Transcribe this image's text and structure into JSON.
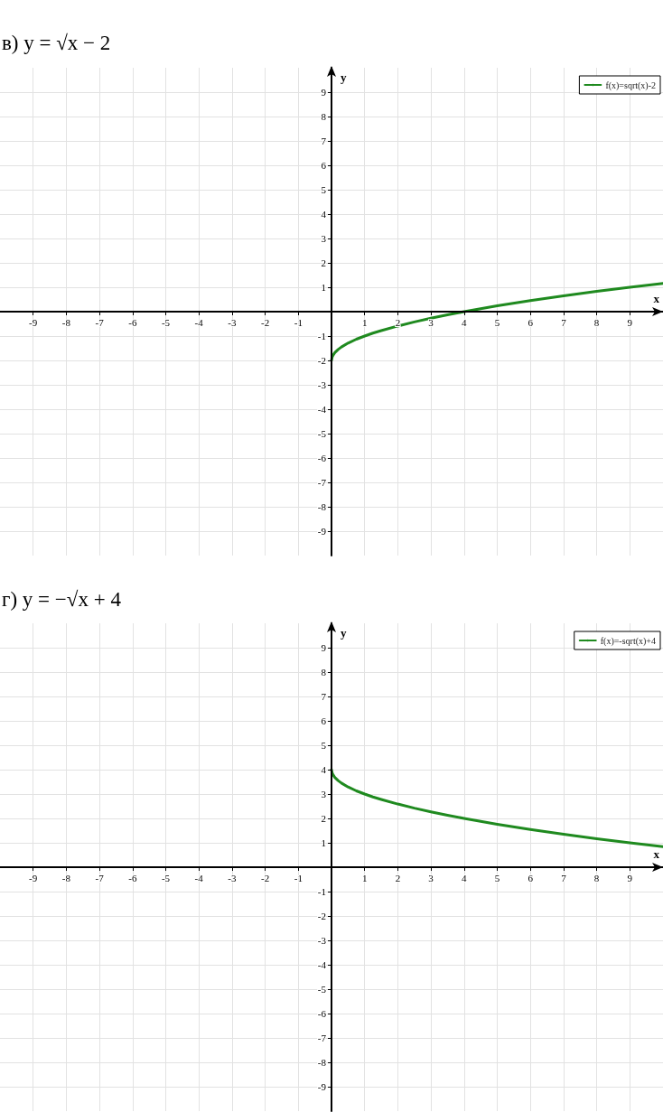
{
  "chart_data": [
    {
      "type": "line",
      "title": "в) y = √x − 2",
      "xlabel": "x",
      "ylabel": "y",
      "x": [
        0,
        0.02,
        0.05,
        0.1,
        0.2,
        0.3,
        0.5,
        0.75,
        1,
        1.25,
        1.5,
        2,
        2.5,
        3,
        3.5,
        4,
        5,
        6,
        7,
        8,
        9,
        10
      ],
      "series": [
        {
          "name": "f(x)=sqrt(x)-2",
          "color": "#1f8a1f",
          "values": [
            -2,
            -1.86,
            -1.78,
            -1.68,
            -1.55,
            -1.45,
            -1.29,
            -1.13,
            -1,
            -0.88,
            -0.78,
            -0.59,
            -0.42,
            -0.27,
            -0.13,
            0,
            0.24,
            0.45,
            0.65,
            0.83,
            1,
            1.16
          ]
        }
      ],
      "xlim": [
        -10,
        10
      ],
      "ylim": [
        -10,
        10
      ],
      "xticks": [
        -9,
        -8,
        -7,
        -6,
        -5,
        -4,
        -3,
        -2,
        -1,
        1,
        2,
        3,
        4,
        5,
        6,
        7,
        8,
        9
      ],
      "yticks": [
        -9,
        -8,
        -7,
        -6,
        -5,
        -4,
        -3,
        -2,
        -1,
        1,
        2,
        3,
        4,
        5,
        6,
        7,
        8,
        9
      ],
      "grid": true,
      "legend": "top right",
      "marker": "none"
    },
    {
      "type": "line",
      "title": "г) y = −√x + 4",
      "xlabel": "x",
      "ylabel": "y",
      "x": [
        0,
        0.02,
        0.05,
        0.1,
        0.2,
        0.3,
        0.5,
        0.75,
        1,
        1.25,
        1.5,
        2,
        2.5,
        3,
        3.5,
        4,
        5,
        6,
        7,
        8,
        9,
        10
      ],
      "series": [
        {
          "name": "f(x)=-sqrt(x)+4",
          "color": "#1f8a1f",
          "values": [
            4,
            3.86,
            3.78,
            3.68,
            3.55,
            3.45,
            3.29,
            3.13,
            3,
            2.88,
            2.78,
            2.59,
            2.42,
            2.27,
            2.13,
            2,
            1.76,
            1.55,
            1.35,
            1.17,
            1,
            0.84
          ]
        }
      ],
      "xlim": [
        -10,
        10
      ],
      "ylim": [
        -10,
        10
      ],
      "xticks": [
        -9,
        -8,
        -7,
        -6,
        -5,
        -4,
        -3,
        -2,
        -1,
        1,
        2,
        3,
        4,
        5,
        6,
        7,
        8,
        9
      ],
      "yticks": [
        -9,
        -8,
        -7,
        -6,
        -5,
        -4,
        -3,
        -2,
        -1,
        1,
        2,
        3,
        4,
        5,
        6,
        7,
        8,
        9
      ],
      "grid": true,
      "legend": "top right",
      "marker": "none"
    }
  ]
}
